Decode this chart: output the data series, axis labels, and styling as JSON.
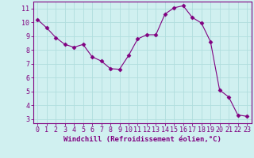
{
  "x": [
    0,
    1,
    2,
    3,
    4,
    5,
    6,
    7,
    8,
    9,
    10,
    11,
    12,
    13,
    14,
    15,
    16,
    17,
    18,
    19,
    20,
    21,
    22,
    23
  ],
  "y": [
    10.2,
    9.6,
    8.9,
    8.4,
    8.2,
    8.4,
    7.5,
    7.2,
    6.65,
    6.6,
    7.6,
    8.8,
    9.1,
    9.1,
    10.6,
    11.05,
    11.2,
    10.35,
    9.95,
    8.6,
    5.1,
    4.6,
    3.3,
    3.2
  ],
  "line_color": "#800080",
  "marker": "D",
  "marker_size": 2.5,
  "bg_color": "#d0f0f0",
  "grid_color": "#b0dede",
  "xlabel": "Windchill (Refroidissement éolien,°C)",
  "xlim": [
    -0.5,
    23.5
  ],
  "ylim": [
    2.7,
    11.5
  ],
  "yticks": [
    3,
    4,
    5,
    6,
    7,
    8,
    9,
    10,
    11
  ],
  "xticks": [
    0,
    1,
    2,
    3,
    4,
    5,
    6,
    7,
    8,
    9,
    10,
    11,
    12,
    13,
    14,
    15,
    16,
    17,
    18,
    19,
    20,
    21,
    22,
    23
  ],
  "tick_color": "#800080",
  "label_color": "#800080",
  "axis_color": "#800080",
  "label_fontsize": 6.5,
  "tick_fontsize": 6.0
}
